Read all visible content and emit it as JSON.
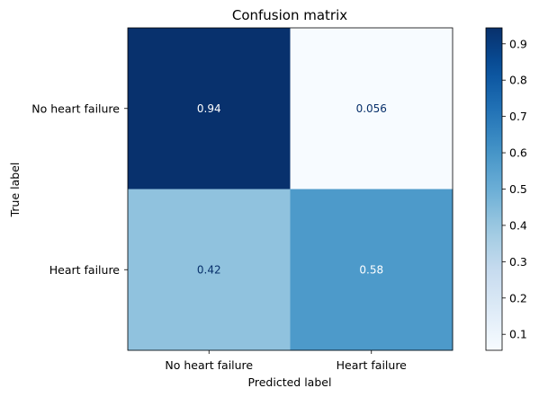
{
  "chart_data": {
    "type": "heatmap",
    "title": "Confusion matrix",
    "xlabel": "Predicted label",
    "ylabel": "True label",
    "x_categories": [
      "No heart failure",
      "Heart failure"
    ],
    "y_categories": [
      "No heart failure",
      "Heart failure"
    ],
    "values": [
      [
        0.94,
        0.056
      ],
      [
        0.42,
        0.58
      ]
    ],
    "cell_labels": [
      [
        "0.94",
        "0.056"
      ],
      [
        "0.42",
        "0.58"
      ]
    ],
    "colormap": "Blues",
    "colorbar": {
      "range": [
        0.056,
        0.944
      ],
      "ticks": [
        0.1,
        0.2,
        0.3,
        0.4,
        0.5,
        0.6,
        0.7,
        0.8,
        0.9
      ],
      "tick_labels": [
        "0.1",
        "0.2",
        "0.3",
        "0.4",
        "0.5",
        "0.6",
        "0.7",
        "0.8",
        "0.9"
      ]
    },
    "grid": false,
    "legend": "colorbar-right"
  }
}
